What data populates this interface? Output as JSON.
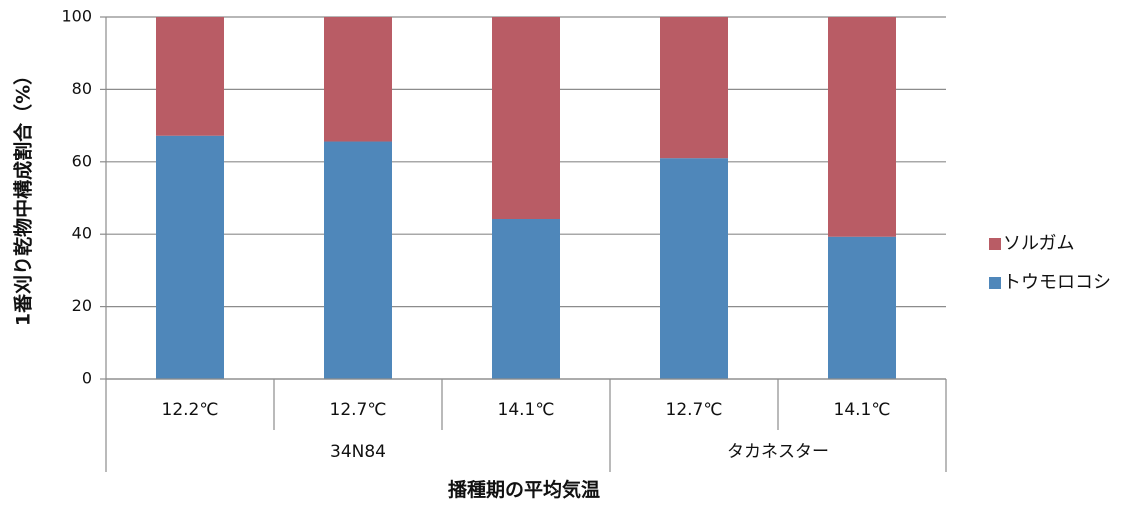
{
  "chart_data": {
    "type": "bar",
    "stacked": true,
    "percent": true,
    "categories": [
      "12.2℃",
      "12.7℃",
      "14.1℃",
      "12.7℃",
      "14.1℃"
    ],
    "groups": [
      {
        "label": "34N84",
        "count": 3
      },
      {
        "label": "タカネスター",
        "count": 2
      }
    ],
    "series": [
      {
        "name": "トウモロコシ",
        "color": "#4f87ba",
        "values": [
          67.2,
          65.6,
          44.2,
          61.0,
          39.3
        ]
      },
      {
        "name": "ソルガム",
        "color": "#b95c65",
        "values": [
          32.8,
          34.4,
          55.8,
          39.0,
          60.7
        ]
      }
    ],
    "xlabel": "播種期の平均気温",
    "ylabel": "1番刈り乾物中構成割合（%）",
    "ylim": [
      0,
      100
    ],
    "yticks": [
      0,
      20,
      40,
      60,
      80,
      100
    ],
    "grid": true,
    "legend_position": "right"
  }
}
